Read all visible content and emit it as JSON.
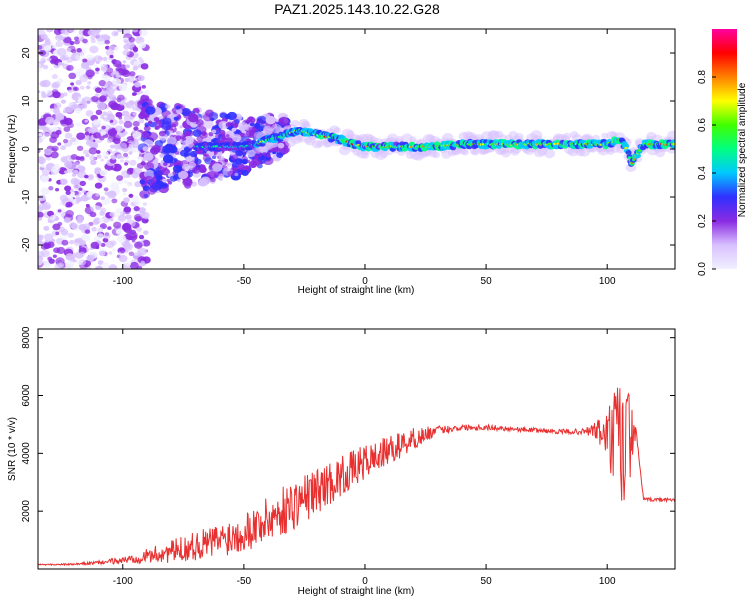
{
  "title": "PAZ1.2025.143.10.22.G28",
  "chart_data": [
    {
      "type": "heatmap",
      "title": "PAZ1.2025.143.10.22.G28",
      "xlabel": "Height of straight line (km)",
      "ylabel": "Frequency (Hz)",
      "xlim": [
        -135,
        128
      ],
      "ylim": [
        -25,
        25
      ],
      "x_ticks": [
        "-100",
        "-50",
        "0",
        "50",
        "100"
      ],
      "x_tick_values": [
        -100,
        -50,
        0,
        50,
        100
      ],
      "y_ticks": [
        "-20",
        "-10",
        "0",
        "10",
        "20"
      ],
      "y_tick_values": [
        -20,
        -10,
        0,
        10,
        20
      ],
      "colorbar": {
        "label": "Normalized spectral amplitude",
        "ticks": [
          "0.0",
          "0.2",
          "0.4",
          "0.6",
          "0.8"
        ],
        "tick_values": [
          0.0,
          0.2,
          0.4,
          0.6,
          0.8
        ],
        "range": [
          0,
          1
        ],
        "colors": [
          "#f0f0ff",
          "#d8c0ff",
          "#8a2be2",
          "#3030ff",
          "#00c8ff",
          "#00ff80",
          "#40ff00",
          "#ffff00",
          "#ff8000",
          "#ff0000",
          "#ff00a0"
        ]
      },
      "ridge": {
        "x": [
          -90,
          -80,
          -70,
          -60,
          -50,
          -45,
          -40,
          -35,
          -30,
          -27,
          -25,
          -20,
          -15,
          -10,
          -5,
          0,
          10,
          20,
          30,
          40,
          50,
          60,
          70,
          80,
          90,
          100,
          105,
          108,
          110,
          115,
          128
        ],
        "y": [
          0,
          0.5,
          0.5,
          0.5,
          0.5,
          1,
          2,
          2.5,
          3.5,
          4,
          3.5,
          3,
          2.5,
          2,
          1,
          0.5,
          0.5,
          0.5,
          0.5,
          1,
          1,
          1,
          1,
          1,
          1,
          1,
          2,
          0,
          -3,
          1,
          1
        ]
      }
    },
    {
      "type": "line",
      "xlabel": "Height of straight line (km)",
      "ylabel": "SNR (10 * v/v)",
      "xlim": [
        -135,
        128
      ],
      "ylim": [
        0,
        8300
      ],
      "x_ticks": [
        "-100",
        "-50",
        "0",
        "50",
        "100"
      ],
      "x_tick_values": [
        -100,
        -50,
        0,
        50,
        100
      ],
      "y_ticks": [
        "2000",
        "4000",
        "6000",
        "8000"
      ],
      "y_tick_values": [
        2000,
        4000,
        6000,
        8000
      ],
      "color": "#e83030",
      "series": [
        {
          "x": [
            -135,
            -120,
            -110,
            -100,
            -90,
            -80,
            -70,
            -60,
            -50,
            -40,
            -30,
            -20,
            -10,
            0,
            10,
            20,
            30,
            40,
            50,
            60,
            70,
            80,
            90,
            95,
            100,
            105,
            108,
            110,
            112,
            115,
            128
          ],
          "y": [
            150,
            160,
            220,
            300,
            450,
            600,
            800,
            1000,
            1300,
            1700,
            2200,
            2700,
            3200,
            3700,
            4100,
            4500,
            4800,
            4900,
            4900,
            4850,
            4800,
            4750,
            4750,
            4800,
            4600,
            4300,
            4000,
            4700,
            4700,
            2400,
            2400
          ],
          "noise": [
            20,
            30,
            60,
            120,
            250,
            400,
            500,
            600,
            700,
            800,
            900,
            800,
            700,
            600,
            500,
            400,
            150,
            100,
            100,
            80,
            80,
            80,
            100,
            300,
            900,
            2500,
            3000,
            1000,
            100,
            60,
            60
          ]
        }
      ]
    }
  ]
}
